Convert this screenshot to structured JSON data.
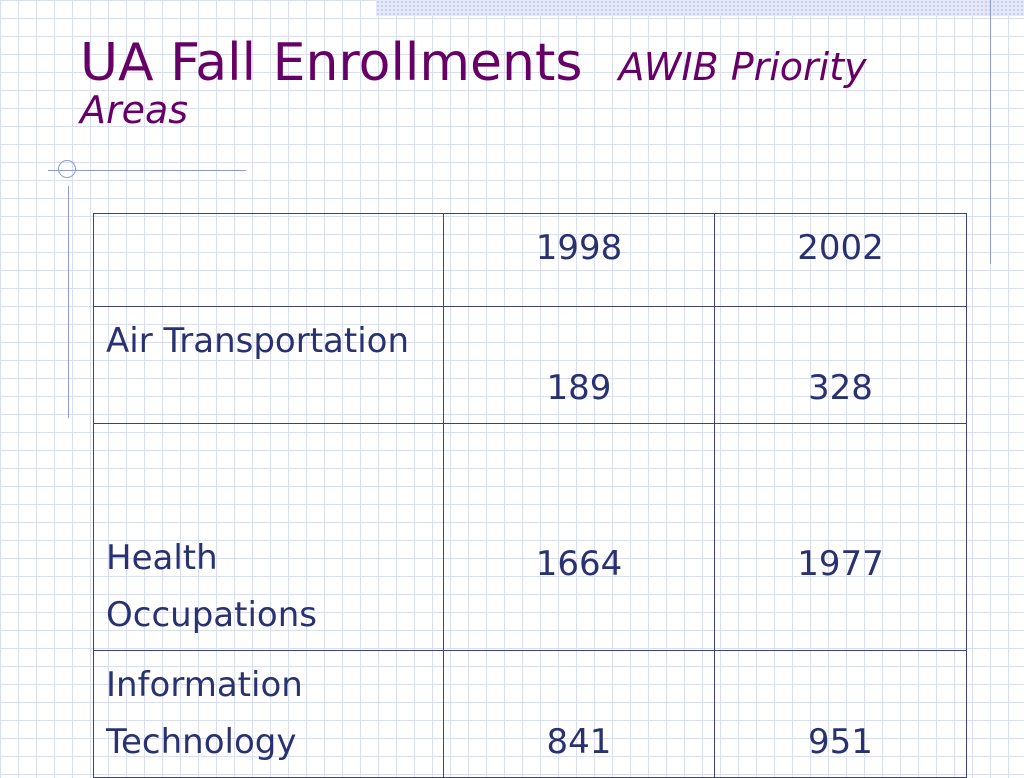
{
  "slide": {
    "title_main": "UA Fall Enrollments",
    "title_sub": "AWIB Priority Areas"
  },
  "table": {
    "columns": [
      "",
      "1998",
      "2002"
    ],
    "rows": [
      {
        "label_lines": [
          "Air Transportation"
        ],
        "values": [
          "189",
          "328"
        ]
      },
      {
        "label_lines": [
          "Health",
          "Occupations"
        ],
        "values": [
          "1664",
          "1977"
        ]
      },
      {
        "label_lines": [
          "Information",
          "Technology"
        ],
        "values": [
          "841",
          "951"
        ]
      }
    ]
  },
  "colors": {
    "title": "#660066",
    "table_text": "#2a3170",
    "rule": "#8f9bd6"
  }
}
